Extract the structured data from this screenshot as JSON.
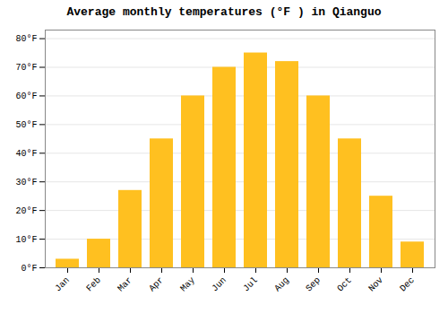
{
  "chart_data": {
    "type": "bar",
    "title": "Average monthly temperatures (°F ) in Qianguo",
    "categories": [
      "Jan",
      "Feb",
      "Mar",
      "Apr",
      "May",
      "Jun",
      "Jul",
      "Aug",
      "Sep",
      "Oct",
      "Nov",
      "Dec"
    ],
    "values": [
      3,
      10,
      27,
      45,
      60,
      70,
      75,
      72,
      60,
      45,
      25,
      9
    ],
    "color": "#FFC020",
    "ylim": [
      0,
      83
    ],
    "yticks": [
      {
        "value": 0,
        "label": "0°F"
      },
      {
        "value": 10,
        "label": "10°F"
      },
      {
        "value": 20,
        "label": "20°F"
      },
      {
        "value": 30,
        "label": "30°F"
      },
      {
        "value": 40,
        "label": "40°F"
      },
      {
        "value": 50,
        "label": "50°F"
      },
      {
        "value": 60,
        "label": "60°F"
      },
      {
        "value": 70,
        "label": "70°F"
      },
      {
        "value": 80,
        "label": "80°F"
      }
    ],
    "grid": true
  }
}
